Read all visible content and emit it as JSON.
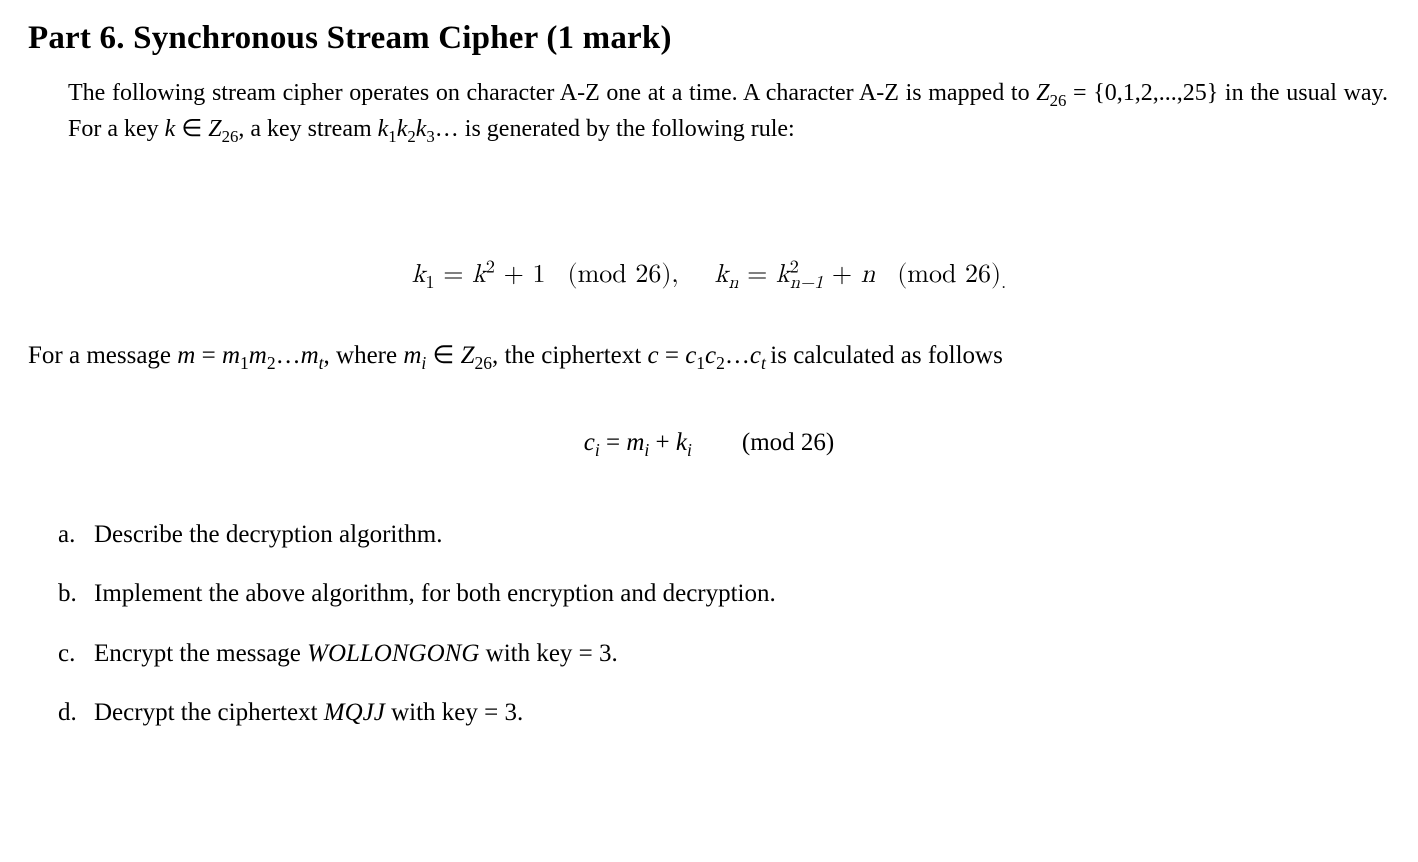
{
  "title": "Part 6. Synchronous Stream Cipher (1 mark)",
  "intro": {
    "t1": "The following stream cipher operates on character A-Z one at a time. A character A-Z is mapped to ",
    "z26": "Z",
    "z26sub": "26",
    "t2": " = {0,1,2,...,25} in the usual way. For a key ",
    "k": "k",
    "in": " ∈ ",
    "z26b": "Z",
    "z26bsub": "26",
    "t3": ", a key stream ",
    "k1": "k",
    "k1sub": "1",
    "k2": "k",
    "k2sub": "2",
    "k3": "k",
    "k3sub": "3",
    "t4": "… is generated by the following rule:"
  },
  "formula": {
    "k1": "k",
    "k1sub": "1",
    "eq1": " = ",
    "k": "k",
    "sq": "2",
    "plus1": " + 1",
    "mod26a": "(mod 26),",
    "kn": "k",
    "knsub": "n",
    "eq2": " = ",
    "kprev": "k",
    "sq2": "2",
    "nminus1": "n−1",
    "plusn": " + ",
    "n": "n",
    "mod26b": "(mod 26)",
    "period": "."
  },
  "msgline": {
    "t1": "For a message ",
    "m": "m",
    "eq": " = ",
    "m1": "m",
    "m1sub": "1",
    "m2": "m",
    "m2sub": "2",
    "dots": "…",
    "mt": "m",
    "mtsub": "t",
    "t2": ", where ",
    "mi": "m",
    "misub": "i",
    "in": " ∈ ",
    "z26": "Z",
    "z26sub": "26",
    "t3": ", the ciphertext ",
    "c": "c",
    "eq2": " = ",
    "c1": "c",
    "c1sub": "1",
    "c2": "c",
    "c2sub": "2",
    "dots2": "…",
    "ct": "c",
    "ctsub": "t ",
    "t4": "is calculated as follows"
  },
  "ciformula": {
    "ci": "c",
    "cisub": "i",
    "eq": " = ",
    "mi": "m",
    "misub": "i",
    "plus": " + ",
    "ki": "k",
    "kisub": "i",
    "mod": "(mod 26)"
  },
  "questions": {
    "a": {
      "marker": "a.",
      "text": "Describe the decryption algorithm."
    },
    "b": {
      "marker": "b.",
      "text": "Implement the above algorithm, for both encryption and decryption."
    },
    "c": {
      "marker": "c.",
      "t1": "Encrypt the message ",
      "word": "WOLLONGONG",
      "t2": " with key = 3."
    },
    "d": {
      "marker": "d.",
      "t1": "Decrypt the ciphertext ",
      "word": "MQJJ",
      "t2": " with key = 3."
    }
  }
}
